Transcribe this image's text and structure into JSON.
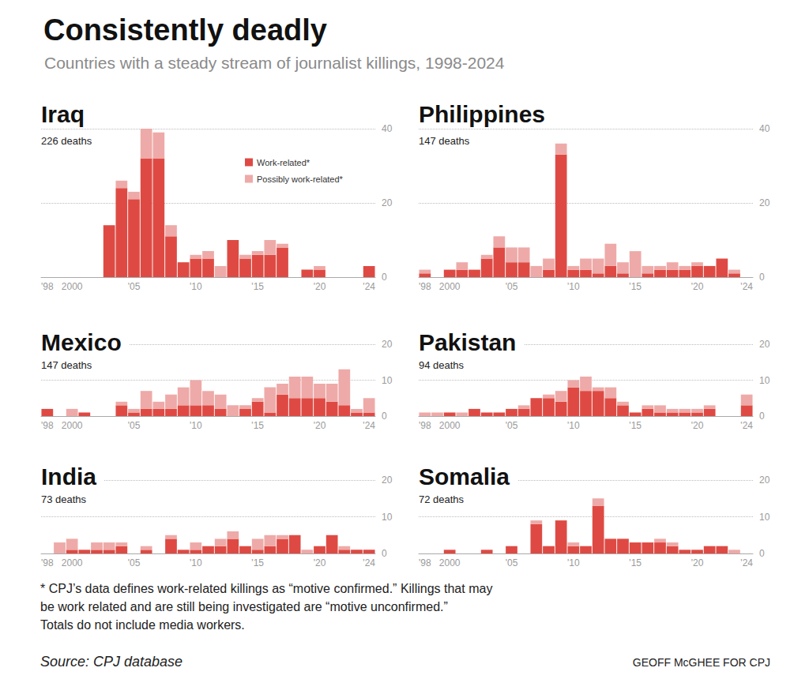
{
  "title": "Consistently deadly",
  "subtitle": "Countries with a steady stream of journalist killings, 1998-2024",
  "footnote": [
    "* CPJ’s data defines work-related killings as “motive confirmed.” Killings that may",
    "be work related and are still being investigated are “motive unconfirmed.”",
    "Totals do not include media workers."
  ],
  "source": "Source: CPJ database",
  "credit": "GEOFF McGHEE FOR CPJ",
  "chart_data": [
    {
      "type": "bar",
      "title": "Iraq",
      "subtitle": "226 deaths",
      "categories": [
        "'98",
        null,
        "2000",
        null,
        null,
        null,
        null,
        "'05",
        null,
        null,
        null,
        null,
        "'10",
        null,
        null,
        null,
        null,
        "'15",
        null,
        null,
        null,
        null,
        "'20",
        null,
        null,
        null,
        "'24"
      ],
      "series": [
        {
          "name": "Work-related*",
          "color": "#de4a43",
          "values": [
            0,
            0,
            0,
            0,
            0,
            14,
            24,
            21,
            32,
            32,
            11,
            4,
            5,
            5,
            0,
            10,
            5,
            6,
            6,
            8,
            0,
            2,
            2,
            0,
            0,
            0,
            3
          ]
        },
        {
          "name": "Possibly work-related*",
          "color": "#eeaaa8",
          "values": [
            0,
            0,
            0,
            0,
            0,
            0,
            2,
            2,
            8,
            7,
            3,
            0,
            1,
            2,
            3,
            0,
            1,
            1,
            4,
            1,
            0,
            0,
            1,
            0,
            0,
            0,
            0
          ]
        }
      ],
      "stacked": true,
      "ylim": [
        0,
        40
      ],
      "yticks": [
        0,
        20,
        40
      ],
      "grid": true,
      "legend": "top-right"
    },
    {
      "type": "bar",
      "title": "Philippines",
      "subtitle": "147 deaths",
      "categories": [
        "'98",
        null,
        "2000",
        null,
        null,
        null,
        null,
        "'05",
        null,
        null,
        null,
        null,
        "'10",
        null,
        null,
        null,
        null,
        "'15",
        null,
        null,
        null,
        null,
        "'20",
        null,
        null,
        null,
        "'24"
      ],
      "series": [
        {
          "color": "#de4a43",
          "values": [
            1,
            0,
            2,
            2,
            2,
            5,
            8,
            4,
            4,
            0,
            2,
            33,
            2,
            2,
            1,
            3,
            1,
            0,
            1,
            2,
            2,
            2,
            3,
            3,
            5,
            1,
            0
          ]
        },
        {
          "color": "#eeaaa8",
          "values": [
            1,
            0,
            0,
            2,
            0,
            1,
            3,
            4,
            4,
            3,
            3,
            3,
            1,
            3,
            4,
            6,
            3,
            7,
            2,
            1,
            2,
            1,
            1,
            0,
            0,
            1,
            0
          ]
        }
      ],
      "stacked": true,
      "ylim": [
        0,
        40
      ],
      "yticks": [
        0,
        20,
        40
      ],
      "grid": true
    },
    {
      "type": "bar",
      "title": "Mexico",
      "subtitle": "147 deaths",
      "categories": [
        "'98",
        null,
        "2000",
        null,
        null,
        null,
        null,
        "'05",
        null,
        null,
        null,
        null,
        "'10",
        null,
        null,
        null,
        null,
        "'15",
        null,
        null,
        null,
        null,
        "'20",
        null,
        null,
        null,
        "'24"
      ],
      "series": [
        {
          "color": "#de4a43",
          "values": [
            2,
            0,
            0,
            1,
            0,
            0,
            3,
            1,
            2,
            2,
            2,
            3,
            3,
            3,
            2,
            0,
            2,
            4,
            1,
            6,
            5,
            5,
            5,
            4,
            3,
            1,
            1
          ]
        },
        {
          "color": "#eeaaa8",
          "values": [
            0,
            0,
            2,
            0,
            0,
            0,
            1,
            1,
            5,
            2,
            4,
            5,
            7,
            4,
            4,
            3,
            1,
            1,
            7,
            3,
            6,
            6,
            4,
            5,
            10,
            1,
            4
          ]
        }
      ],
      "stacked": true,
      "ylim": [
        0,
        20
      ],
      "yticks": [
        0,
        10,
        20
      ],
      "grid": true
    },
    {
      "type": "bar",
      "title": "Pakistan",
      "subtitle": "94 deaths",
      "categories": [
        "'98",
        null,
        "2000",
        null,
        null,
        null,
        null,
        "'05",
        null,
        null,
        null,
        null,
        "'10",
        null,
        null,
        null,
        null,
        "'15",
        null,
        null,
        null,
        null,
        "'20",
        null,
        null,
        null,
        "'24"
      ],
      "series": [
        {
          "color": "#de4a43",
          "values": [
            0,
            0,
            1,
            0,
            2,
            1,
            1,
            2,
            2,
            5,
            5,
            4,
            8,
            7,
            7,
            5,
            3,
            1,
            2,
            1,
            1,
            1,
            1,
            2,
            0,
            0,
            3
          ]
        },
        {
          "color": "#eeaaa8",
          "values": [
            1,
            1,
            0,
            1,
            0,
            0,
            0,
            0,
            1,
            0,
            1,
            3,
            2,
            4,
            1,
            3,
            1,
            0,
            1,
            2,
            1,
            1,
            1,
            1,
            0,
            0,
            3
          ]
        }
      ],
      "stacked": true,
      "ylim": [
        0,
        20
      ],
      "yticks": [
        0,
        10,
        20
      ],
      "grid": true
    },
    {
      "type": "bar",
      "title": "India",
      "subtitle": "73 deaths",
      "categories": [
        "'98",
        null,
        "2000",
        null,
        null,
        null,
        null,
        "'05",
        null,
        null,
        null,
        null,
        "'10",
        null,
        null,
        null,
        null,
        "'15",
        null,
        null,
        null,
        null,
        "'20",
        null,
        null,
        null,
        "'24"
      ],
      "series": [
        {
          "color": "#de4a43",
          "values": [
            0,
            0,
            1,
            1,
            1,
            1,
            2,
            0,
            1,
            0,
            4,
            1,
            1,
            2,
            2,
            4,
            2,
            1,
            2,
            4,
            5,
            0,
            2,
            5,
            1,
            1,
            1
          ]
        },
        {
          "color": "#eeaaa8",
          "values": [
            0,
            3,
            3,
            0,
            2,
            2,
            1,
            0,
            1,
            0,
            1,
            0,
            2,
            0,
            2,
            2,
            0,
            3,
            3,
            1,
            0,
            1,
            0,
            0,
            1,
            0,
            0
          ]
        }
      ],
      "stacked": true,
      "ylim": [
        0,
        20
      ],
      "yticks": [
        0,
        10,
        20
      ],
      "grid": true
    },
    {
      "type": "bar",
      "title": "Somalia",
      "subtitle": "72 deaths",
      "categories": [
        "'98",
        null,
        "2000",
        null,
        null,
        null,
        null,
        "'05",
        null,
        null,
        null,
        null,
        "'10",
        null,
        null,
        null,
        null,
        "'15",
        null,
        null,
        null,
        null,
        "'20",
        null,
        null,
        null,
        "'24"
      ],
      "series": [
        {
          "color": "#de4a43",
          "values": [
            0,
            0,
            1,
            0,
            0,
            1,
            0,
            2,
            0,
            8,
            2,
            9,
            2,
            2,
            13,
            4,
            4,
            3,
            3,
            3,
            2,
            1,
            1,
            2,
            2,
            0,
            0
          ]
        },
        {
          "color": "#eeaaa8",
          "values": [
            0,
            0,
            0,
            0,
            0,
            0,
            0,
            0,
            0,
            1,
            0,
            0,
            1,
            0,
            2,
            0,
            0,
            0,
            0,
            1,
            1,
            0,
            0,
            0,
            0,
            1,
            0
          ]
        }
      ],
      "stacked": true,
      "ylim": [
        0,
        20
      ],
      "yticks": [
        0,
        10,
        20
      ],
      "grid": true
    }
  ]
}
